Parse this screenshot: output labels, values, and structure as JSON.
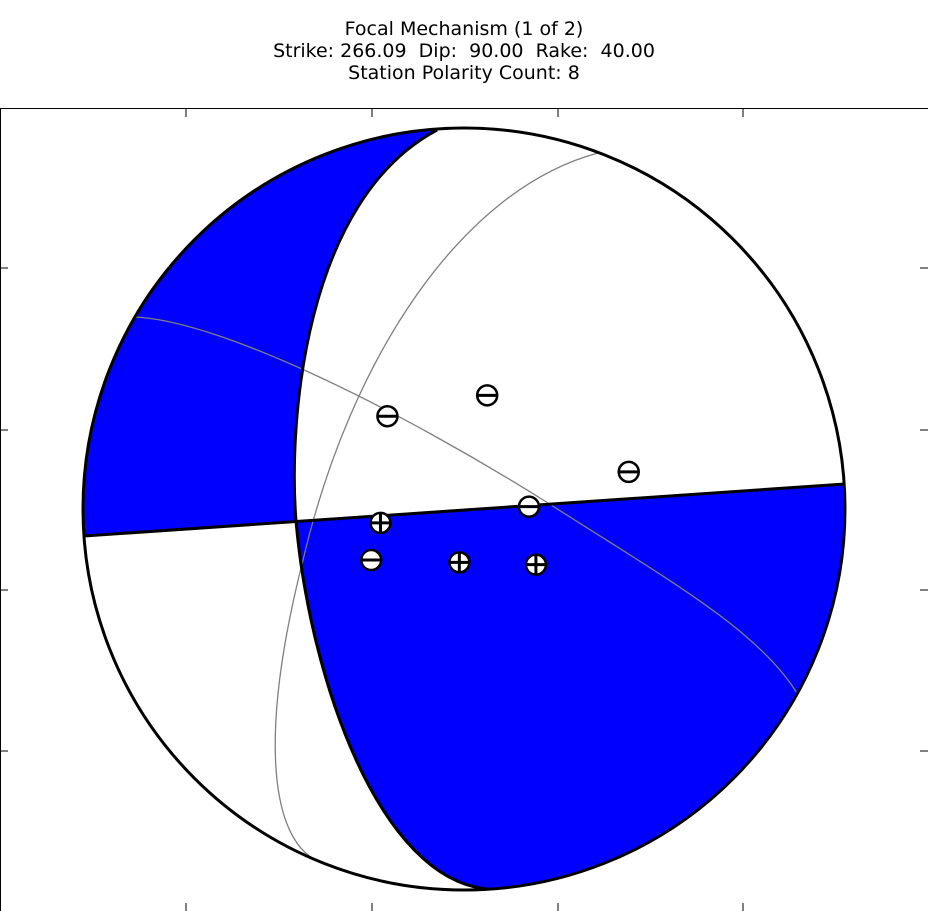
{
  "title_lines": [
    "Focal Mechanism (1 of 2)",
    "Strike: 266.09  Dip:  90.00  Rake:  40.00",
    "Station Polarity Count: 8"
  ],
  "colors": {
    "compression_fill": "#0000ff",
    "dilatation_fill": "#ffffff",
    "outline": "#000000",
    "auxiliary_curves": "#7f7f7f"
  },
  "chart_data": {
    "type": "scatter",
    "subtype": "beachball_focal_mechanism",
    "strike": 266.09,
    "dip": 90.0,
    "rake": 40.0,
    "polarity_count": 8,
    "stations": [
      {
        "x": 0.17,
        "y": 0.4,
        "polarity": "-"
      },
      {
        "x": 0.6,
        "y": 0.49,
        "polarity": "-"
      },
      {
        "x": 1.21,
        "y": 0.16,
        "polarity": "-"
      },
      {
        "x": 0.78,
        "y": 0.01,
        "polarity": "-"
      },
      {
        "x": 0.14,
        "y": -0.06,
        "polarity": "+"
      },
      {
        "x": 0.1,
        "y": -0.22,
        "polarity": "-"
      },
      {
        "x": 0.48,
        "y": -0.23,
        "polarity": "+"
      },
      {
        "x": 0.81,
        "y": -0.24,
        "polarity": "+"
      }
    ],
    "grid": false,
    "legend": "none"
  }
}
